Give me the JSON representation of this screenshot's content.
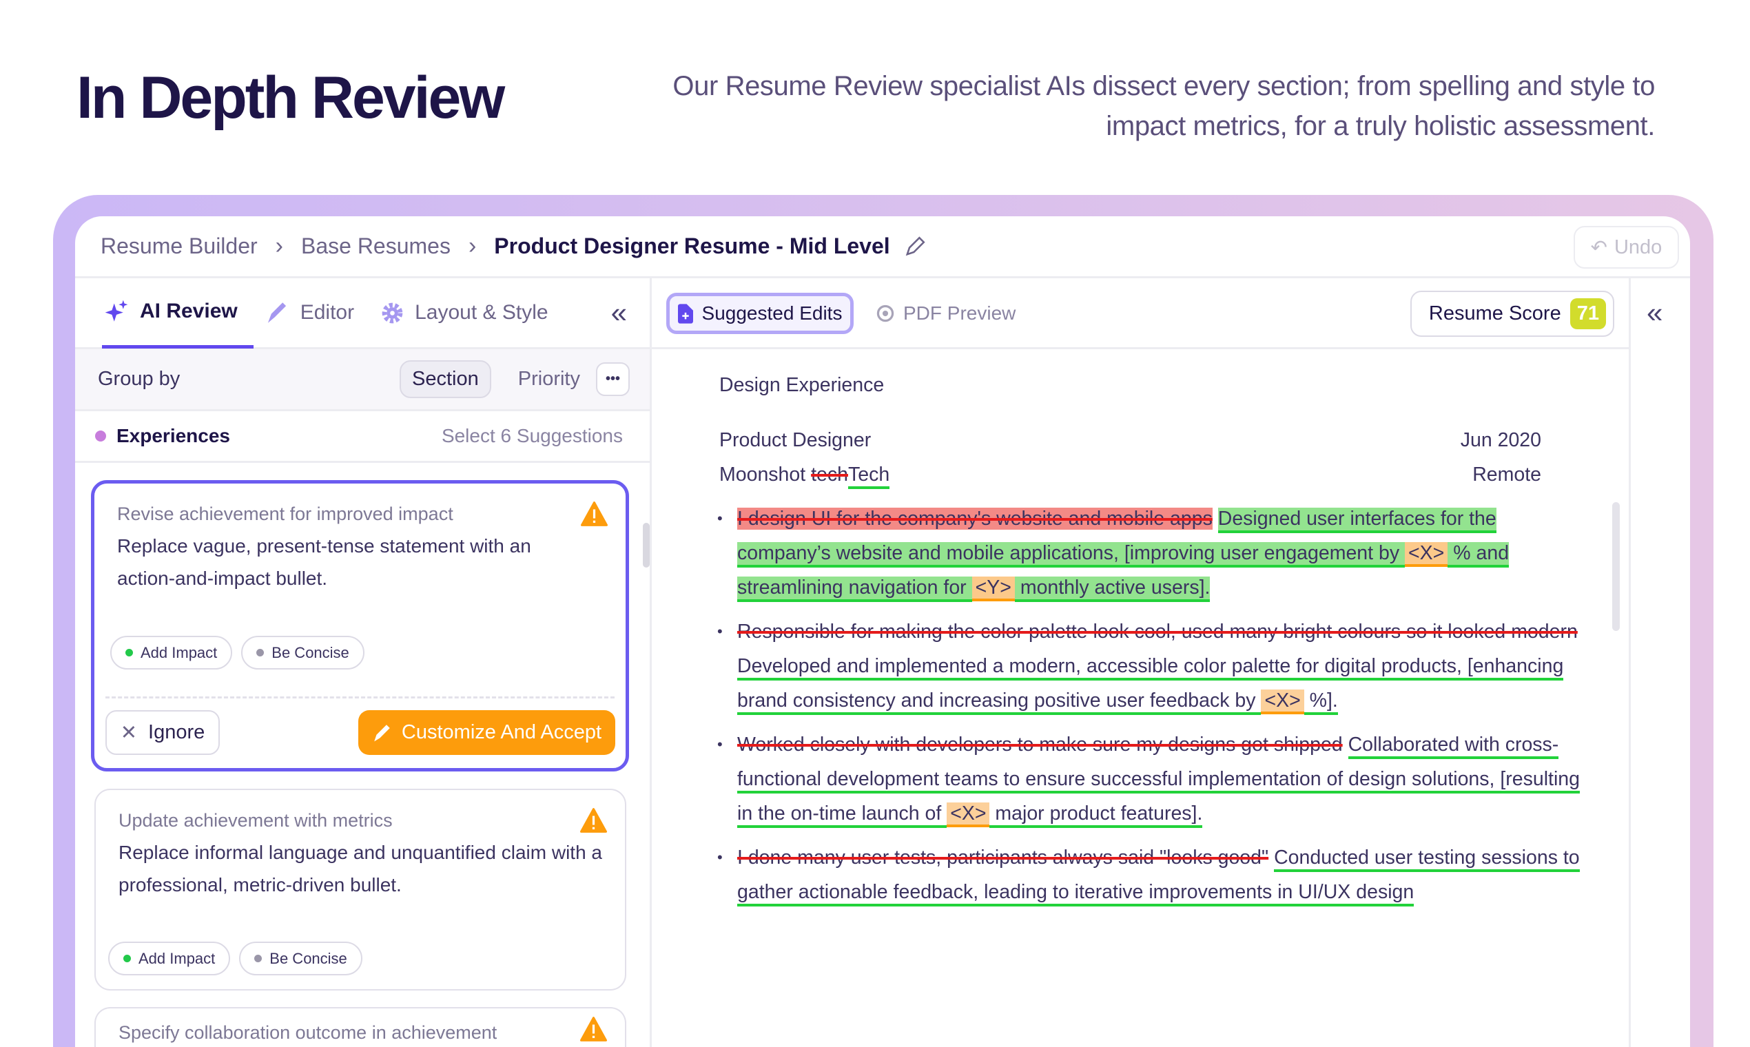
{
  "hero": {
    "title": "In Depth Review",
    "subtitle": "Our Resume Review specialist AIs dissect every section; from spelling and style to impact metrics, for a truly holistic assessment."
  },
  "breadcrumb": {
    "items": [
      "Resume Builder",
      "Base Resumes"
    ],
    "current": "Product Designer Resume - Mid Level",
    "undo": "Undo"
  },
  "left_tabs": [
    {
      "label": "AI Review",
      "icon": "sparkle-icon"
    },
    {
      "label": "Editor",
      "icon": "pencil-icon"
    },
    {
      "label": "Layout & Style",
      "icon": "gear-icon"
    }
  ],
  "group_by": {
    "label": "Group by",
    "options": [
      "Section",
      "Priority"
    ],
    "selected": "Section"
  },
  "section": {
    "name": "Experiences",
    "action": "Select 6 Suggestions"
  },
  "cards": [
    {
      "title": "Revise achievement for improved impact",
      "desc": "Replace vague, present-tense statement with an action-and-impact bullet.",
      "tags": [
        "Add Impact",
        "Be Concise"
      ],
      "ignore": "Ignore",
      "accept": "Customize And Accept"
    },
    {
      "title": "Update achievement with metrics",
      "desc": "Replace informal language and unquantified claim with a professional, metric-driven bullet.",
      "tags": [
        "Add Impact",
        "Be Concise"
      ]
    },
    {
      "title": "Specify collaboration outcome in achievement"
    }
  ],
  "colors": {
    "accent": "#6148ee",
    "warning": "#fd9c0c",
    "score": "#d2dc2c",
    "deleted": "#e51b1b",
    "added": "#22d23a"
  },
  "toolbar": {
    "suggested": "Suggested Edits",
    "pdf": "PDF Preview",
    "score_label": "Resume Score",
    "score": "71"
  },
  "doc": {
    "section": "Design Experience",
    "role": "Product Designer",
    "date": "Jun 2020",
    "company": "Moonshot",
    "company_del": "tech",
    "company_add": "Tech",
    "location": "Remote",
    "bullets": [
      [
        {
          "t": "I design UI for the company's website and mobile apps",
          "k": "del"
        },
        {
          "t": " "
        },
        {
          "t": "Designed user interfaces for the company’s website and mobile applications, [improving user engagement by ",
          "k": "add"
        },
        {
          "t": "<X>",
          "k": "ph"
        },
        {
          "t": " % and streamlining navigation for ",
          "k": "add"
        },
        {
          "t": "<Y>",
          "k": "ph"
        },
        {
          "t": " monthly active users].",
          "k": "add"
        }
      ],
      [
        {
          "t": "Responsible for making the color palette look cool, used many bright colours so it looked modern",
          "k": "del"
        },
        {
          "t": " "
        },
        {
          "t": "Developed and implemented a modern, accessible color palette for digital products, [enhancing brand consistency and increasing positive user feedback by ",
          "k": "add"
        },
        {
          "t": "<X>",
          "k": "ph"
        },
        {
          "t": " %].",
          "k": "add"
        }
      ],
      [
        {
          "t": "Worked closely with developers to make sure my designs got shipped",
          "k": "del"
        },
        {
          "t": " "
        },
        {
          "t": "Collaborated with cross-functional development teams to ensure successful implementation of design solutions, [resulting in the on-time launch of ",
          "k": "add"
        },
        {
          "t": "<X>",
          "k": "ph"
        },
        {
          "t": " major product features].",
          "k": "add"
        }
      ],
      [
        {
          "t": "I done many user tests, participants always said \"looks good\"",
          "k": "del"
        },
        {
          "t": " "
        },
        {
          "t": "Conducted user testing sessions to gather actionable feedback, leading to iterative improvements in UI/UX design",
          "k": "add"
        }
      ]
    ]
  }
}
